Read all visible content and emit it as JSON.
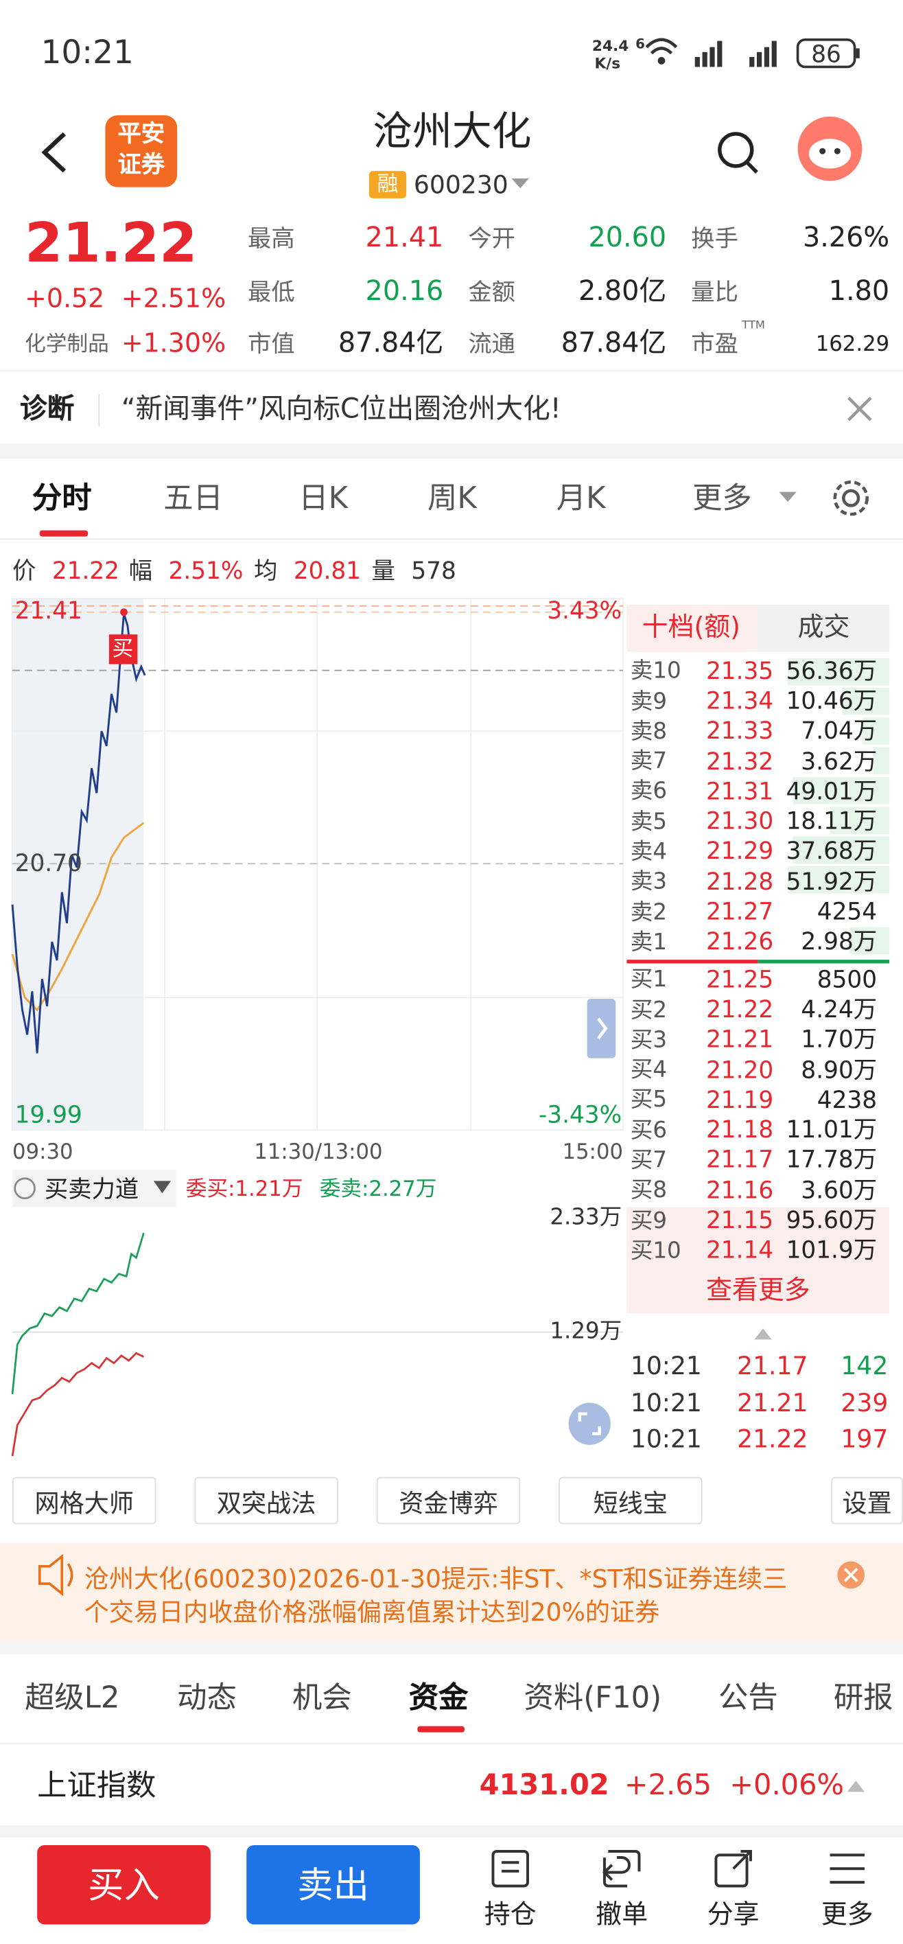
{
  "status_bar": {
    "time": "10:21",
    "net_speed": "24.4",
    "net_unit": "K/s",
    "signal": "6",
    "battery": "86"
  },
  "header": {
    "logo": [
      "平安",
      "证券"
    ],
    "title": "沧州大化",
    "badge": "融",
    "code": "600230"
  },
  "quote": {
    "price": "21.22",
    "change": "+0.52",
    "change_pct": "+2.51%",
    "sector": "化学制品",
    "sector_pct": "+1.30%",
    "stats": [
      {
        "label": "最高",
        "value": "21.41"
      },
      {
        "label": "今开",
        "value": "20.60"
      },
      {
        "label": "换手",
        "value": "3.26%"
      },
      {
        "label": "最低",
        "value": "20.16"
      },
      {
        "label": "金额",
        "value": "2.80亿"
      },
      {
        "label": "量比",
        "value": "1.80"
      },
      {
        "label": "市值",
        "value": "87.84亿"
      },
      {
        "label": "流通",
        "value": "87.84亿"
      },
      {
        "label": "市盈",
        "value": "162.29"
      }
    ],
    "ttm": "TTM"
  },
  "diagnosis": {
    "label": "诊断",
    "text": "“新闻事件”风向标C位出圈沧州大化!"
  },
  "chart_tabs": [
    "分时",
    "五日",
    "日K",
    "周K",
    "月K",
    "更多"
  ],
  "chart_info": [
    {
      "label": "价",
      "value": "21.22"
    },
    {
      "label": "幅",
      "value": "2.51%"
    },
    {
      "label": "均",
      "value": "20.81"
    },
    {
      "label": "量",
      "value": "578"
    }
  ],
  "intraday": {
    "high": "21.41",
    "high_pct": "3.43%",
    "prev_close": "20.70",
    "low": "19.99",
    "low_pct": "-3.43%",
    "times": [
      "09:30",
      "11:30/13:00",
      "15:00"
    ],
    "buy_marker": "买"
  },
  "indicator": {
    "name": "买卖力道",
    "bid": "委买:1.21万",
    "ask": "委卖:2.27万",
    "top": "2.33万",
    "mid": "1.29万"
  },
  "order_book": {
    "tabs": [
      "十档(额)",
      "成交"
    ],
    "asks": [
      {
        "label": "卖10",
        "price": "21.35",
        "volume": "56.36万"
      },
      {
        "label": "卖9",
        "price": "21.34",
        "volume": "10.46万"
      },
      {
        "label": "卖8",
        "price": "21.33",
        "volume": "7.04万"
      },
      {
        "label": "卖7",
        "price": "21.32",
        "volume": "3.62万"
      },
      {
        "label": "卖6",
        "price": "21.31",
        "volume": "49.01万"
      },
      {
        "label": "卖5",
        "price": "21.30",
        "volume": "18.11万"
      },
      {
        "label": "卖4",
        "price": "21.29",
        "volume": "37.68万"
      },
      {
        "label": "卖3",
        "price": "21.28",
        "volume": "51.92万"
      },
      {
        "label": "卖2",
        "price": "21.27",
        "volume": "4254"
      },
      {
        "label": "卖1",
        "price": "21.26",
        "volume": "2.98万"
      }
    ],
    "bids": [
      {
        "label": "买1",
        "price": "21.25",
        "volume": "8500"
      },
      {
        "label": "买2",
        "price": "21.22",
        "volume": "4.24万"
      },
      {
        "label": "买3",
        "price": "21.21",
        "volume": "1.70万"
      },
      {
        "label": "买4",
        "price": "21.20",
        "volume": "8.90万"
      },
      {
        "label": "买5",
        "price": "21.19",
        "volume": "4238"
      },
      {
        "label": "买6",
        "price": "21.18",
        "volume": "11.01万"
      },
      {
        "label": "买7",
        "price": "21.17",
        "volume": "17.78万"
      },
      {
        "label": "买8",
        "price": "21.16",
        "volume": "3.60万"
      },
      {
        "label": "买9",
        "price": "21.15",
        "volume": "95.60万"
      },
      {
        "label": "买10",
        "price": "21.14",
        "volume": "101.9万"
      }
    ],
    "more": "查看更多",
    "trades": [
      {
        "time": "10:21",
        "price": "21.17",
        "volume": "142"
      },
      {
        "time": "10:21",
        "price": "21.21",
        "volume": "239"
      },
      {
        "time": "10:21",
        "price": "21.22",
        "volume": "197"
      }
    ]
  },
  "tools": [
    "网格大师",
    "双突战法",
    "资金博弈",
    "短线宝",
    "设置"
  ],
  "notice": "沧州大化(600230)2026-01-30提示:非ST、*ST和S证券连续三个交易日内收盘价格涨幅偏离值累计达到20%的证券",
  "info_tabs": [
    "超级L2",
    "动态",
    "机会",
    "资金",
    "资料(F10)",
    "公告",
    "研报"
  ],
  "index": {
    "name": "上证指数",
    "value": "4131.02",
    "change": "+2.65",
    "change_pct": "+0.06%"
  },
  "actions": {
    "buy": "买入",
    "sell": "卖出",
    "items": [
      "持仓",
      "撤单",
      "分享",
      "更多"
    ]
  }
}
